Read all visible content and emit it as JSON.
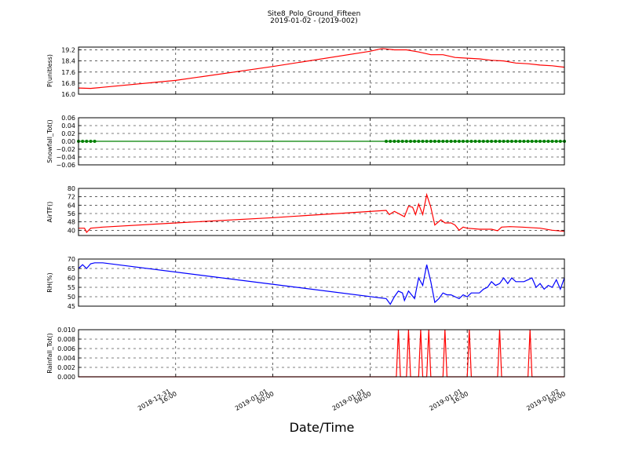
{
  "figure": {
    "title_line1": "Site8_Polo_Ground_Fifteen",
    "title_line2": "2019-01-02 - (2019-002)",
    "xlabel": "Date/Time"
  },
  "chart_data": {
    "type": "line",
    "x_axis": {
      "range": [
        "2018-12-31 08:00",
        "2019-01-02 00:00"
      ],
      "ticks": [
        {
          "t": "2018-12-31 16:00",
          "line1": "2018-12-31",
          "line2": "16:00"
        },
        {
          "t": "2019-01-01 00:00",
          "line1": "2019-01-01",
          "line2": "00:00"
        },
        {
          "t": "2019-01-01 08:00",
          "line1": "2019-01-01",
          "line2": "08:00"
        },
        {
          "t": "2019-01-01 16:00",
          "line1": "2019-01-01",
          "line2": "16:00"
        },
        {
          "t": "2019-01-02 00:00",
          "line1": "2019-01-02",
          "line2": "00:00"
        }
      ],
      "grid": true
    },
    "panels": [
      {
        "ylabel": "P(unitless)",
        "ylim": [
          16.0,
          19.4
        ],
        "yticks": [
          "16.0",
          "16.8",
          "17.6",
          "18.4",
          "19.2"
        ],
        "color": "#ff0000",
        "markers": false,
        "series": [
          [
            "2018-12-31 08:00",
            16.45
          ],
          [
            "2018-12-31 09:00",
            16.42
          ],
          [
            "2018-12-31 10:00",
            16.5
          ],
          [
            "2018-12-31 16:00",
            17.0
          ],
          [
            "2019-01-01 00:00",
            18.0
          ],
          [
            "2019-01-01 08:00",
            19.1
          ],
          [
            "2019-01-01 09:00",
            19.3
          ],
          [
            "2019-01-01 10:00",
            19.2
          ],
          [
            "2019-01-01 11:00",
            19.2
          ],
          [
            "2019-01-01 12:00",
            19.05
          ],
          [
            "2019-01-01 13:00",
            18.85
          ],
          [
            "2019-01-01 14:00",
            18.85
          ],
          [
            "2019-01-01 15:00",
            18.65
          ],
          [
            "2019-01-01 16:00",
            18.6
          ],
          [
            "2019-01-01 17:00",
            18.55
          ],
          [
            "2019-01-01 18:00",
            18.45
          ],
          [
            "2019-01-01 19:00",
            18.4
          ],
          [
            "2019-01-01 20:00",
            18.25
          ],
          [
            "2019-01-01 21:00",
            18.2
          ],
          [
            "2019-01-01 22:00",
            18.1
          ],
          [
            "2019-01-01 23:00",
            18.05
          ],
          [
            "2019-01-02 00:00",
            17.95
          ]
        ]
      },
      {
        "ylabel": "Snowfall_Tot()",
        "ylim": [
          -0.06,
          0.06
        ],
        "yticks": [
          "−0.06",
          "−0.04",
          "−0.02",
          "0.00",
          "0.02",
          "0.04",
          "0.06"
        ],
        "color": "#008000",
        "markers": true,
        "series": [
          [
            "2018-12-31 08:00",
            0
          ],
          [
            "2018-12-31 09:20",
            0
          ],
          [
            "2019-01-01 09:20",
            0
          ],
          [
            "2019-01-02 00:00",
            0
          ]
        ],
        "marker_ranges": [
          [
            "2018-12-31 08:00",
            "2018-12-31 09:20"
          ],
          [
            "2019-01-01 09:20",
            "2019-01-02 00:00"
          ]
        ]
      },
      {
        "ylabel": "AirTF()",
        "ylim": [
          35,
          80
        ],
        "yticks": [
          "40",
          "48",
          "56",
          "64",
          "72",
          "80"
        ],
        "color": "#ff0000",
        "markers": false,
        "series": [
          [
            "2018-12-31 08:00",
            42
          ],
          [
            "2018-12-31 08:30",
            42
          ],
          [
            "2018-12-31 08:40",
            38
          ],
          [
            "2018-12-31 09:00",
            42
          ],
          [
            "2018-12-31 10:00",
            43
          ],
          [
            "2018-12-31 16:00",
            47
          ],
          [
            "2019-01-01 00:00",
            52
          ],
          [
            "2019-01-01 09:20",
            59
          ],
          [
            "2019-01-01 09:35",
            55
          ],
          [
            "2019-01-01 10:00",
            58
          ],
          [
            "2019-01-01 10:30",
            55
          ],
          [
            "2019-01-01 10:50",
            53
          ],
          [
            "2019-01-01 11:10",
            63
          ],
          [
            "2019-01-01 11:30",
            62
          ],
          [
            "2019-01-01 11:45",
            55
          ],
          [
            "2019-01-01 12:00",
            65
          ],
          [
            "2019-01-01 12:20",
            55
          ],
          [
            "2019-01-01 12:40",
            74
          ],
          [
            "2019-01-01 13:00",
            62
          ],
          [
            "2019-01-01 13:20",
            45
          ],
          [
            "2019-01-01 13:50",
            50
          ],
          [
            "2019-01-01 14:10",
            47
          ],
          [
            "2019-01-01 14:40",
            47
          ],
          [
            "2019-01-01 15:00",
            45
          ],
          [
            "2019-01-01 15:20",
            40
          ],
          [
            "2019-01-01 15:40",
            43
          ],
          [
            "2019-01-01 16:00",
            42
          ],
          [
            "2019-01-01 17:00",
            41
          ],
          [
            "2019-01-01 18:00",
            41
          ],
          [
            "2019-01-01 18:30",
            39.5
          ],
          [
            "2019-01-01 18:50",
            43
          ],
          [
            "2019-01-01 19:30",
            43.5
          ],
          [
            "2019-01-01 20:30",
            43
          ],
          [
            "2019-01-01 22:00",
            42
          ],
          [
            "2019-01-01 23:00",
            40
          ],
          [
            "2019-01-02 00:00",
            39
          ]
        ]
      },
      {
        "ylabel": "RH(%)",
        "ylim": [
          45,
          70
        ],
        "yticks": [
          "45",
          "50",
          "55",
          "60",
          "65",
          "70"
        ],
        "color": "#0000ff",
        "markers": false,
        "series": [
          [
            "2018-12-31 08:00",
            65
          ],
          [
            "2018-12-31 08:20",
            67
          ],
          [
            "2018-12-31 08:40",
            65
          ],
          [
            "2018-12-31 09:00",
            67.5
          ],
          [
            "2018-12-31 09:20",
            68
          ],
          [
            "2018-12-31 10:00",
            68
          ],
          [
            "2019-01-01 09:20",
            49
          ],
          [
            "2019-01-01 09:40",
            46
          ],
          [
            "2019-01-01 10:00",
            50
          ],
          [
            "2019-01-01 10:20",
            53
          ],
          [
            "2019-01-01 10:40",
            52
          ],
          [
            "2019-01-01 10:50",
            48
          ],
          [
            "2019-01-01 11:10",
            53
          ],
          [
            "2019-01-01 11:40",
            49
          ],
          [
            "2019-01-01 12:00",
            60
          ],
          [
            "2019-01-01 12:20",
            56
          ],
          [
            "2019-01-01 12:40",
            67
          ],
          [
            "2019-01-01 13:00",
            58
          ],
          [
            "2019-01-01 13:20",
            47
          ],
          [
            "2019-01-01 13:40",
            49
          ],
          [
            "2019-01-01 14:00",
            52
          ],
          [
            "2019-01-01 14:20",
            51
          ],
          [
            "2019-01-01 14:40",
            51
          ],
          [
            "2019-01-01 15:00",
            50
          ],
          [
            "2019-01-01 15:20",
            49
          ],
          [
            "2019-01-01 15:40",
            51
          ],
          [
            "2019-01-01 16:00",
            50
          ],
          [
            "2019-01-01 16:20",
            52
          ],
          [
            "2019-01-01 17:00",
            52
          ],
          [
            "2019-01-01 17:20",
            54
          ],
          [
            "2019-01-01 17:40",
            55
          ],
          [
            "2019-01-01 18:00",
            58
          ],
          [
            "2019-01-01 18:20",
            56
          ],
          [
            "2019-01-01 18:40",
            57
          ],
          [
            "2019-01-01 19:00",
            60
          ],
          [
            "2019-01-01 19:20",
            57
          ],
          [
            "2019-01-01 19:40",
            60
          ],
          [
            "2019-01-01 20:00",
            58
          ],
          [
            "2019-01-01 20:40",
            58
          ],
          [
            "2019-01-01 21:00",
            59
          ],
          [
            "2019-01-01 21:20",
            60
          ],
          [
            "2019-01-01 21:40",
            55
          ],
          [
            "2019-01-01 22:00",
            57
          ],
          [
            "2019-01-01 22:20",
            54
          ],
          [
            "2019-01-01 22:40",
            56
          ],
          [
            "2019-01-01 23:00",
            55
          ],
          [
            "2019-01-01 23:20",
            59
          ],
          [
            "2019-01-01 23:40",
            54
          ],
          [
            "2019-01-02 00:00",
            60
          ]
        ]
      },
      {
        "ylabel": "Rainfall_Tot()",
        "ylim": [
          0,
          0.01
        ],
        "yticks": [
          "0.000",
          "0.002",
          "0.004",
          "0.006",
          "0.008",
          "0.010"
        ],
        "color": "#ff0000",
        "markers": false,
        "series": [
          [
            "2018-12-31 08:00",
            0
          ],
          [
            "2019-01-01 10:10",
            0
          ],
          [
            "2019-01-01 10:20",
            0.01
          ],
          [
            "2019-01-01 10:30",
            0
          ],
          [
            "2019-01-01 11:00",
            0
          ],
          [
            "2019-01-01 11:10",
            0.01
          ],
          [
            "2019-01-01 11:20",
            0
          ],
          [
            "2019-01-01 12:00",
            0
          ],
          [
            "2019-01-01 12:10",
            0.01
          ],
          [
            "2019-01-01 12:20",
            0
          ],
          [
            "2019-01-01 12:40",
            0
          ],
          [
            "2019-01-01 12:50",
            0.01
          ],
          [
            "2019-01-01 13:00",
            0
          ],
          [
            "2019-01-01 14:00",
            0
          ],
          [
            "2019-01-01 14:10",
            0.01
          ],
          [
            "2019-01-01 14:20",
            0
          ],
          [
            "2019-01-01 16:00",
            0
          ],
          [
            "2019-01-01 16:10",
            0.01
          ],
          [
            "2019-01-01 16:20",
            0
          ],
          [
            "2019-01-01 18:30",
            0
          ],
          [
            "2019-01-01 18:40",
            0.01
          ],
          [
            "2019-01-01 18:50",
            0
          ],
          [
            "2019-01-01 21:00",
            0
          ],
          [
            "2019-01-01 21:10",
            0.01
          ],
          [
            "2019-01-01 21:20",
            0
          ],
          [
            "2019-01-02 00:00",
            0
          ]
        ]
      }
    ]
  }
}
